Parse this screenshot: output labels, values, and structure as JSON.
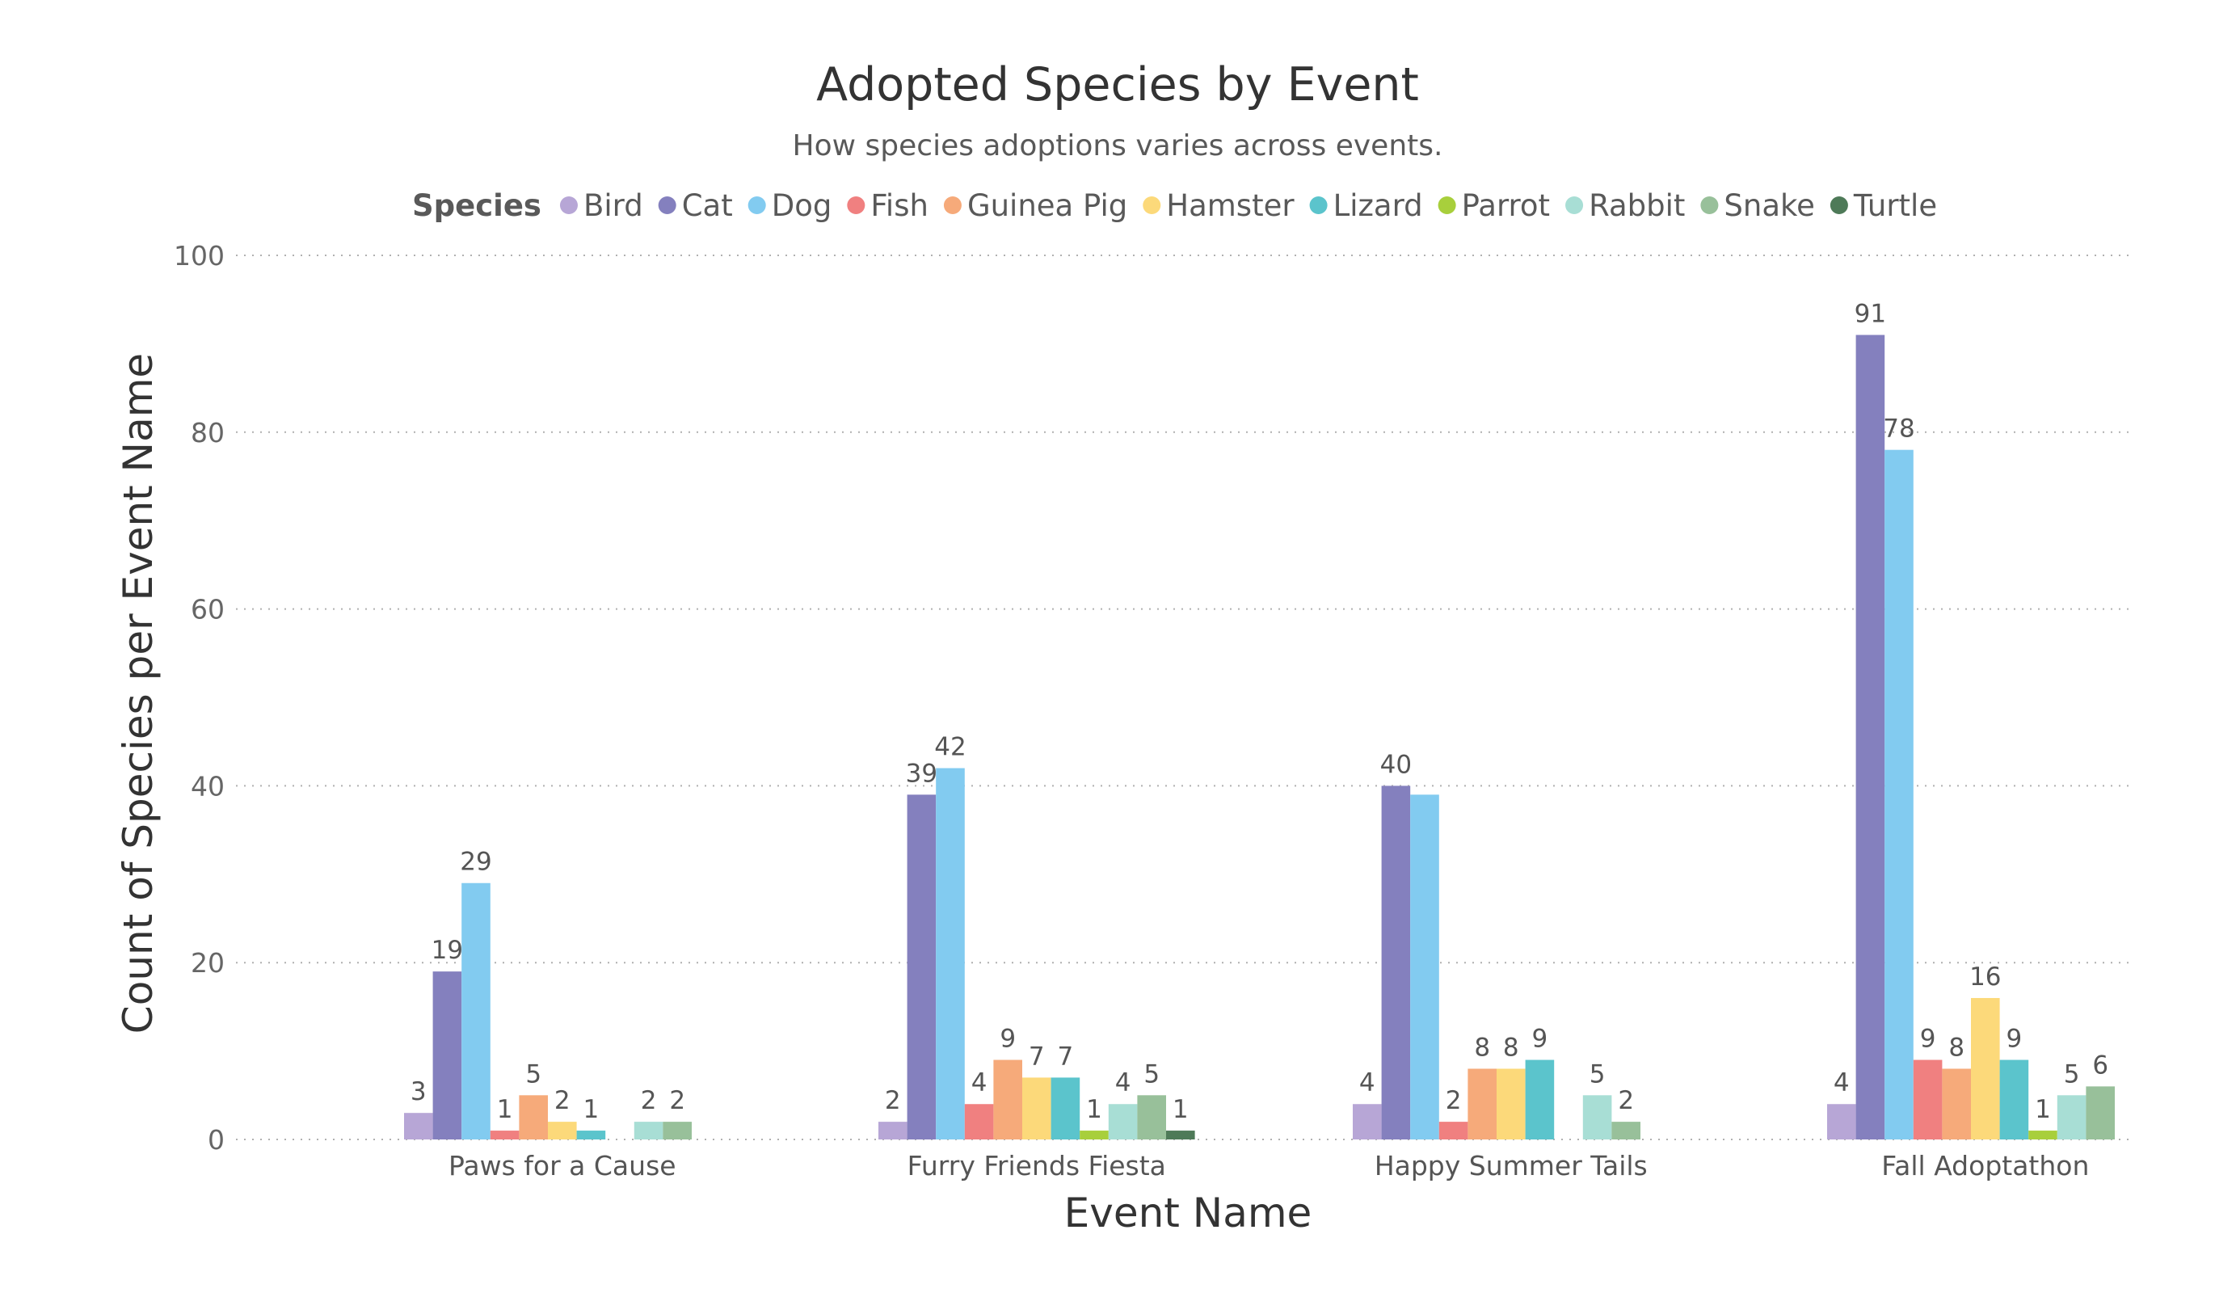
{
  "chart_data": {
    "type": "bar",
    "title": "Adopted Species by Event",
    "subtitle": "How species adoptions varies across events.",
    "xlabel": "Event Name",
    "ylabel": "Count of Species per Event Name",
    "ylim": [
      0,
      100
    ],
    "yticks": [
      0,
      20,
      40,
      60,
      80,
      100
    ],
    "grid": true,
    "legend": {
      "title": "Species",
      "position": "top"
    },
    "categories": [
      "Paws for a Cause",
      "Furry Friends Fiesta",
      "Happy Summer Tails",
      "Fall Adoptathon"
    ],
    "series": [
      {
        "name": "Bird",
        "color": "#b7a6d6",
        "values": [
          3,
          2,
          4,
          4
        ]
      },
      {
        "name": "Cat",
        "color": "#8480be",
        "values": [
          19,
          39,
          40,
          91
        ]
      },
      {
        "name": "Dog",
        "color": "#82cbf0",
        "values": [
          29,
          42,
          39,
          78
        ]
      },
      {
        "name": "Fish",
        "color": "#f08080",
        "values": [
          1,
          4,
          2,
          9
        ]
      },
      {
        "name": "Guinea Pig",
        "color": "#f6aa7a",
        "values": [
          5,
          9,
          8,
          8
        ]
      },
      {
        "name": "Hamster",
        "color": "#fcd97a",
        "values": [
          2,
          7,
          8,
          16
        ]
      },
      {
        "name": "Lizard",
        "color": "#5bc4cc",
        "values": [
          1,
          7,
          9,
          9
        ]
      },
      {
        "name": "Parrot",
        "color": "#a8cf3c",
        "values": [
          null,
          1,
          null,
          1
        ]
      },
      {
        "name": "Rabbit",
        "color": "#a8ded5",
        "values": [
          2,
          4,
          5,
          5
        ]
      },
      {
        "name": "Snake",
        "color": "#98c09a",
        "values": [
          2,
          5,
          2,
          6
        ]
      },
      {
        "name": "Turtle",
        "color": "#4e7a58",
        "values": [
          null,
          1,
          null,
          null
        ]
      }
    ],
    "data_labels": [
      [
        "3",
        "19",
        "29",
        "1",
        "5",
        "2",
        "1",
        "",
        "2",
        "2",
        ""
      ],
      [
        "2",
        "39",
        "42",
        "4",
        "9",
        "7",
        "7",
        "1",
        "4",
        "5",
        "1"
      ],
      [
        "4",
        "40",
        "",
        "2",
        "8",
        "8",
        "9",
        "",
        "5",
        "2",
        ""
      ],
      [
        "4",
        "91",
        "78",
        "9",
        "8",
        "16",
        "9",
        "1",
        "5",
        "6",
        ""
      ]
    ]
  }
}
